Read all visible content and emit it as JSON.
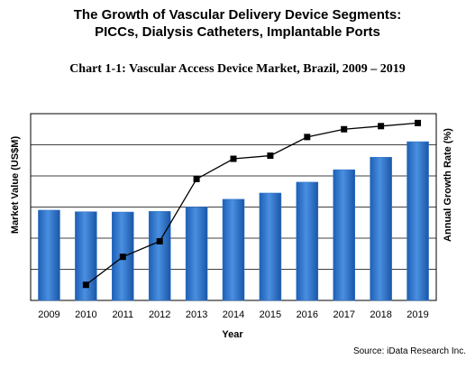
{
  "header": {
    "title_line_1": "The Growth of Vascular Delivery Device Segments:",
    "title_line_2": "PICCs, Dialysis Catheters, Implantable Ports"
  },
  "source": "Source: iData Research Inc.",
  "chart_data": {
    "type": "bar",
    "title": "Chart 1-1: Vascular Access Device Market, Brazil, 2009 – 2019",
    "xlabel": "Year",
    "ylabel": "Market Value (US$M)",
    "y2label": "Annual Growth Rate (%)",
    "categories": [
      "2009",
      "2010",
      "2011",
      "2012",
      "2013",
      "2014",
      "2015",
      "2016",
      "2017",
      "2018",
      "2019"
    ],
    "ylim": [
      0,
      6
    ],
    "y2lim": [
      0,
      6
    ],
    "gridlines": [
      1,
      2,
      3,
      4,
      5
    ],
    "colors": {
      "bar": "#2e72c8",
      "line": "#000000"
    },
    "series": [
      {
        "type": "bar",
        "axis": "left",
        "values": [
          2.9,
          2.85,
          2.84,
          2.86,
          3.0,
          3.25,
          3.45,
          3.8,
          4.2,
          4.6,
          5.1
        ]
      },
      {
        "type": "line",
        "axis": "right",
        "x": [
          "2010",
          "2011",
          "2012",
          "2013",
          "2014",
          "2015",
          "2016",
          "2017",
          "2018",
          "2019"
        ],
        "values": [
          0.5,
          1.4,
          1.9,
          3.9,
          4.55,
          4.65,
          5.25,
          5.5,
          5.6,
          5.7
        ]
      }
    ]
  }
}
